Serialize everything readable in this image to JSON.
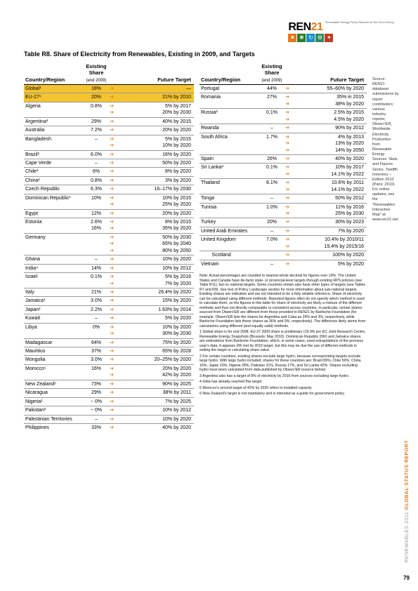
{
  "logo": {
    "text": "REN21",
    "sub": "Renewable Energy\nPolicy Network\nfor the 21st Century",
    "icon_colors": [
      "#e67817",
      "#2a7a2a",
      "#1a8fc4",
      "#2f8a5a",
      "#c23b1e"
    ]
  },
  "title": "Table R8. Share of Electricity from Renewables, Existing in 2009, and Targets",
  "head": {
    "region": "Country/Region",
    "share": "Existing Share",
    "share_sub": "(end 2009)",
    "target": "Future Target"
  },
  "left": [
    {
      "r": "Global¹",
      "s": "18%",
      "t": [
        "—"
      ],
      "hl": true,
      "first": true
    },
    {
      "r": "EU-27¹",
      "s": "20%",
      "t": [
        "21% by 2010"
      ],
      "hl": true
    },
    {
      "r": "Algeria",
      "s": "0.8%",
      "t": [
        "5% by 2017",
        "20% by 2030"
      ]
    },
    {
      "r": "Argentina³",
      "s": "29%",
      "t": [
        "40% by 2015"
      ]
    },
    {
      "r": "Australia",
      "s": "7.2%",
      "t": [
        "20% by 2020"
      ]
    },
    {
      "r": "Bangladesh",
      "s": "–",
      "t": [
        "5% by 2015",
        "10% by 2020"
      ]
    },
    {
      "r": "Brazil²",
      "s": "6.0%",
      "t": [
        "16% by 2020"
      ]
    },
    {
      "r": "Cape Verde",
      "s": "–",
      "t": [
        "50% by 2020"
      ]
    },
    {
      "r": "Chile²",
      "s": "6%",
      "t": [
        "8% by 2020"
      ]
    },
    {
      "r": "China²",
      "s": "0.8%",
      "t": [
        "3% by 2020"
      ]
    },
    {
      "r": "Czech Republic",
      "s": "6.3%",
      "t": [
        "16–17% by 2030"
      ]
    },
    {
      "r": "Dominican Republic¹",
      "s": "10%",
      "t": [
        "10% by 2015",
        "25% by 2020"
      ]
    },
    {
      "r": "Egypt",
      "s": "12%",
      "t": [
        "20% by 2020"
      ]
    },
    {
      "r": "Estonia",
      "s": "2.6%\n16%",
      "t": [
        "8% by 2015",
        "35% by 2020"
      ]
    },
    {
      "r": "Germany",
      "s": "",
      "t": [
        "50% by 2030",
        "65% by 2040",
        "80% by 2050"
      ]
    },
    {
      "r": "Ghana",
      "s": "–",
      "t": [
        "10% by 2020"
      ]
    },
    {
      "r": "India⁴",
      "s": "14%",
      "t": [
        "10% by 2012"
      ]
    },
    {
      "r": "Israel",
      "s": "0.1%",
      "t": [
        "5% by 2016",
        "7% by 2020"
      ]
    },
    {
      "r": "Italy",
      "s": "21%",
      "t": [
        "26.4% by 2020"
      ]
    },
    {
      "r": "Jamaica¹",
      "s": "3.0%",
      "t": [
        "15% by 2020"
      ]
    },
    {
      "r": "Japan²",
      "s": "2.2%",
      "t": [
        "1.63% by 2014"
      ]
    },
    {
      "r": "Kuwait",
      "s": "–",
      "t": [
        "5% by 2020"
      ]
    },
    {
      "r": "Libya",
      "s": "0%",
      "t": [
        "10% by 2020",
        "30% by 2030"
      ]
    },
    {
      "r": "Madagascar",
      "s": "64%",
      "t": [
        "75% by 2020"
      ]
    },
    {
      "r": "Mauritius",
      "s": "37%",
      "t": [
        "65% by 2028"
      ]
    },
    {
      "r": "Mongolia",
      "s": "3.0%",
      "t": [
        "20–25% by 2020"
      ]
    },
    {
      "r": "Morocco⁵",
      "s": "16%",
      "t": [
        "20% by 2020",
        "42% by 2020"
      ]
    },
    {
      "r": "New Zealand⁶",
      "s": "73%",
      "t": [
        "90% by 2025"
      ]
    },
    {
      "r": "Nicaragua",
      "s": "29%",
      "t": [
        "38% by 2011"
      ]
    },
    {
      "r": "Nigeria²",
      "s": "~ 0%",
      "t": [
        "7% by 2025"
      ]
    },
    {
      "r": "Pakistan²",
      "s": "~ 0%",
      "t": [
        "10% by 2012"
      ]
    },
    {
      "r": "Palestinian Territories",
      "s": "–",
      "t": [
        "10% by 2020"
      ]
    },
    {
      "r": "Philippines",
      "s": "33%",
      "t": [
        "40% by 2020"
      ]
    }
  ],
  "right": [
    {
      "r": "Portugal",
      "s": "44%",
      "t": [
        "55–60% by 2020"
      ],
      "first": true
    },
    {
      "r": "Romania",
      "s": "27%",
      "t": [
        "35% in 2015",
        "38% by 2020"
      ]
    },
    {
      "r": "Russia²",
      "s": "0.1%",
      "t": [
        "2.5% by 2015",
        "4.5% by 2020"
      ]
    },
    {
      "r": "Rwanda",
      "s": "–",
      "t": [
        "90% by 2012"
      ]
    },
    {
      "r": "South Africa",
      "s": "1.7%",
      "t": [
        "4% by 2013",
        "13% by 2020",
        "14% by 2050"
      ]
    },
    {
      "r": "Spain",
      "s": "26%",
      "t": [
        "40% by 2020"
      ]
    },
    {
      "r": "Sri Lanka²",
      "s": "0.1%",
      "t": [
        "10% by 2017",
        "14.1% by 2022"
      ]
    },
    {
      "r": "Thailand",
      "s": "8.1%",
      "t": [
        "10.6% by 2011",
        "14.1% by 2022"
      ]
    },
    {
      "r": "Tonga",
      "s": "–",
      "t": [
        "50% by 2012"
      ]
    },
    {
      "r": "Tunisia",
      "s": "1.0%",
      "t": [
        "11% by 2016",
        "25% by 2030"
      ]
    },
    {
      "r": "Turkey",
      "s": "20%",
      "t": [
        "30% by 2023"
      ]
    },
    {
      "r": "United Arab Emirates",
      "s": "–",
      "t": [
        "7% by 2020"
      ]
    },
    {
      "r": "United Kingdom",
      "s": "7.0%",
      "t": [
        "10.4% by 2010/11",
        "15.4% by 2015/16"
      ]
    },
    {
      "r": "        Scotland",
      "s": "",
      "t": [
        "100% by 2020"
      ]
    },
    {
      "r": "Vietnam",
      "s": "–",
      "t": [
        "5% by 2020"
      ]
    }
  ],
  "notes_intro": "Note: Actual percentages are rounded to nearest whole decimal for figures over 10%. The United States and Canada have de-facto state- or provincial-level targets through existing RPS policies (see Table R11), but no national targets. Some countries shown also have other types of targets (see Tables R7 and R9). See text of Policy Landscape section for more information about sub-national targets. Existing shares are indicative and are not intended to be a fully reliable reference. Share of electricity can be calculated using different methods. Reported figures often do not specify which method is used to calculate them, so the figures in this table for share of electricity are likely a mixture of the different methods and thus not directly comparable or consistent across countries. In particular, certain shares sourced from Observ'ER are different from those provided to REN21 by Bariloche Foundation (for example, Observ'ER lists the shares for Argentina and Cuba as 29% and 3%, respectively, while Bariloche Foundation lists these shares as 36% and 9%, respectively). The difference likely stems from calculations using different (and equally valid) methods.",
  "notes_list": [
    "1 Global share is for end 2008. EU-27 2009 share is preliminary (19.9% per EC Joint Research Centre, Renewable Energy Snapshots (Brussels: May 2010). Dominican Republic (DR) and Jamaica shares are estimations from Bariloche Foundation, which, in some cases, used extrapolations of the previous year's data. It appears DR met its 2015 target, but this may be due the use of different methods in setting the target or calculating share value.",
    "2 For certain countries, existing shares exclude large hydro, because corresponding targets exclude large hydro. With large hydro included, shares for these countries are: Brazil 89%, Chile 50%, China 16%, Japan 10%, Nigeria 28%, Pakistan 31%, Russia 17%, and Sri Lanka 42%. Shares excluding hydro have been calculated from data published by Observ'ER (source below).",
    "3 Argentina also has a target of 8% of electricity by 2016 from sources excluding large hydro.",
    "4 India has already reached this target.",
    "5 Morocco's second target of 42% by 2020 refers to installed capacity.",
    "6 New Zealand's target is not mandatory and is intended as a guide for government policy."
  ],
  "sidebar": "Source: REN21 database; submissions by report contributors; various industry reports; Observ'ER, Worldwide Electricity Production from Renewable Energy Sources: Stats and Figures Series. Twelfth Inventory – Edition 2010 (Paris: 2010). For online updates, see the \"Renewables Interactive Map\" at www.ren21.net.",
  "side_label_grey": "RENEWABLES 2011 ",
  "side_label_orange": "GLOBAL STATUS REPORT",
  "page": "79"
}
